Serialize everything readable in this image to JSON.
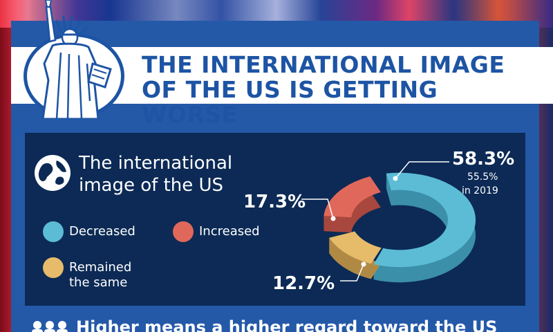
{
  "header": {
    "title_line1": "THE INTERNATIONAL IMAGE",
    "title_line2": "OF THE US IS GETTING WORSE"
  },
  "colors": {
    "decreased": "#5cbcd6",
    "increased": "#e0685a",
    "remained": "#e6bb6a",
    "panel": "#2459a8",
    "card": "#0c2a55",
    "title": "#1d54a4"
  },
  "icons": [
    "statue-of-liberty-icon",
    "globe-icon",
    "people-icon"
  ],
  "chart_data": {
    "type": "pie",
    "title": "The international image of the US",
    "series": [
      {
        "name": "Decreased",
        "value": 58.3,
        "label": "58.3%",
        "note_line1": "55.5%",
        "note_line2": "in 2019"
      },
      {
        "name": "Increased",
        "value": 17.3,
        "label": "17.3%"
      },
      {
        "name": "Remained the same",
        "value": 12.7,
        "label": "12.7%"
      }
    ],
    "legend": {
      "decreased": "Decreased",
      "increased": "Increased",
      "remained_line1": "Remained",
      "remained_line2": "the same"
    }
  },
  "footer": {
    "text": "Higher means a higher regard toward the US"
  }
}
